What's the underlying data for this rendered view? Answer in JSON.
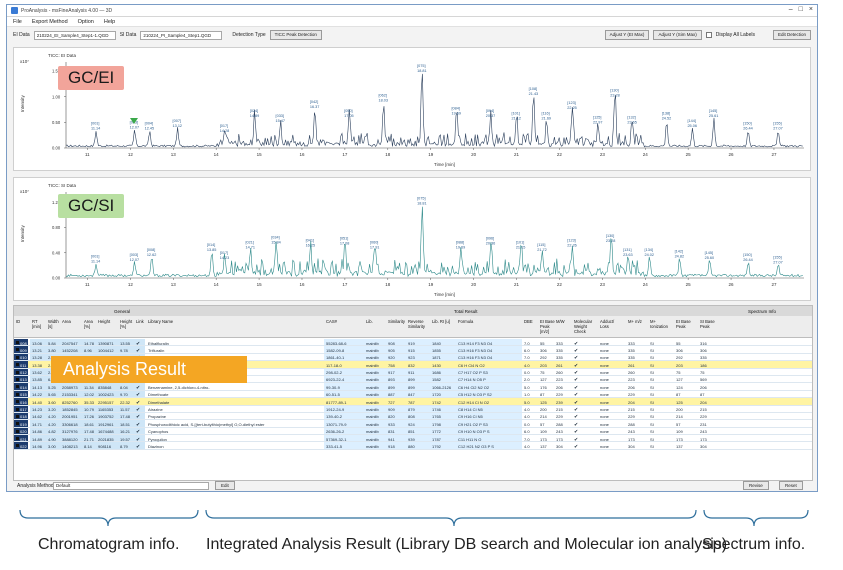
{
  "window": {
    "title": "ProAnalysis - msFineAnalysis 4.00 — 3D",
    "menu": [
      "File",
      "Export Method",
      "Option",
      "Help"
    ]
  },
  "toolbar": {
    "ei_label": "EI Data",
    "ei_value": "210224_EI_Sample4_Step1-1.QGD",
    "si_label": "SI Data",
    "si_value": "210224_PI_Sample4_Step1.QGD",
    "detection_label": "Detection Type",
    "detection_value": "TICC Peak Detection",
    "adjust_ei": "Adjust Y (EI Max)",
    "adjust_sim": "Adjust Y (Sim Max)",
    "display_all_labels": "Display All Labels",
    "edit_detection": "Edit Detection"
  },
  "chart_data": [
    {
      "type": "line",
      "title": "TICC: EI Data",
      "banner": "GC/EI",
      "xlabel": "Time [min]",
      "ylabel": "Intensity",
      "y_exponent": "x10⁷",
      "xlim": [
        10.5,
        27.7
      ],
      "ylim": [
        0,
        1.6
      ],
      "y_ticks": [
        "0.00",
        "0.50",
        "1.00",
        "1.50"
      ],
      "x_ticks": [
        11,
        12,
        13,
        14,
        15,
        16,
        17,
        18,
        19,
        20,
        21,
        22,
        23,
        24,
        25,
        26,
        27
      ],
      "peaks": [
        {
          "t": 11.2,
          "h": 0.3,
          "id": "[001]",
          "rt": "11.14"
        },
        {
          "t": 12.1,
          "h": 0.32,
          "id": "[003]",
          "rt": "12.07"
        },
        {
          "t": 12.45,
          "h": 0.3,
          "id": "[004]",
          "rt": "12.45"
        },
        {
          "t": 13.1,
          "h": 0.35,
          "id": "[007]",
          "rt": "13.12"
        },
        {
          "t": 14.2,
          "h": 0.25,
          "id": "[017]",
          "rt": "14.28"
        },
        {
          "t": 14.9,
          "h": 0.55,
          "id": "[024]",
          "rt": "14.89"
        },
        {
          "t": 15.5,
          "h": 0.45,
          "id": "[033]",
          "rt": "15.47"
        },
        {
          "t": 16.3,
          "h": 0.72,
          "id": "[042]",
          "rt": "16.37"
        },
        {
          "t": 17.1,
          "h": 0.55,
          "id": "[050]",
          "rt": "17.05"
        },
        {
          "t": 17.9,
          "h": 0.85,
          "id": "[062]",
          "rt": "18.03"
        },
        {
          "t": 18.8,
          "h": 1.42,
          "id": "[075]",
          "rt": "18.81"
        },
        {
          "t": 19.6,
          "h": 0.6,
          "id": "[084]",
          "rt": "19.69"
        },
        {
          "t": 20.4,
          "h": 0.55,
          "id": "[094]",
          "rt": "20.37"
        },
        {
          "t": 21.0,
          "h": 0.5,
          "id": "[101]",
          "rt": "21.12"
        },
        {
          "t": 21.4,
          "h": 0.98,
          "id": "[108]",
          "rt": "21.43"
        },
        {
          "t": 21.7,
          "h": 0.5,
          "id": "[116]",
          "rt": "21.69"
        },
        {
          "t": 22.3,
          "h": 0.7,
          "id": "[123]",
          "rt": "22.25"
        },
        {
          "t": 22.9,
          "h": 0.42,
          "id": "[125]",
          "rt": "22.97"
        },
        {
          "t": 23.3,
          "h": 0.95,
          "id": "[130]",
          "rt": "23.28"
        },
        {
          "t": 23.7,
          "h": 0.42,
          "id": "[132]",
          "rt": "23.65"
        },
        {
          "t": 24.5,
          "h": 0.5,
          "id": "[138]",
          "rt": "24.52"
        },
        {
          "t": 25.1,
          "h": 0.35,
          "id": "[144]",
          "rt": "25.06"
        },
        {
          "t": 25.6,
          "h": 0.55,
          "id": "[145]",
          "rt": "25.61"
        },
        {
          "t": 26.4,
          "h": 0.3,
          "id": "[150]",
          "rt": "26.44"
        },
        {
          "t": 27.1,
          "h": 0.3,
          "id": "[155]",
          "rt": "27.07"
        }
      ]
    },
    {
      "type": "line",
      "title": "TICC: SI Data",
      "banner": "GC/SI",
      "xlabel": "Time [min]",
      "ylabel": "Intensity",
      "y_exponent": "x10⁷",
      "xlim": [
        10.5,
        27.7
      ],
      "ylim": [
        0,
        1.3
      ],
      "y_ticks": [
        "0.00",
        "0.40",
        "0.80",
        "1.20"
      ],
      "x_ticks": [
        11,
        12,
        13,
        14,
        15,
        16,
        17,
        18,
        19,
        20,
        21,
        22,
        23,
        24,
        25,
        26,
        27
      ],
      "peaks": [
        {
          "t": 11.2,
          "h": 0.2,
          "id": "[001]",
          "rt": "11.14"
        },
        {
          "t": 12.1,
          "h": 0.22,
          "id": "[003]",
          "rt": "12.07"
        },
        {
          "t": 12.5,
          "h": 0.3,
          "id": "[008]",
          "rt": "12.62"
        },
        {
          "t": 13.9,
          "h": 0.38,
          "id": "[014]",
          "rt": "13.85"
        },
        {
          "t": 14.2,
          "h": 0.25,
          "id": "[017]",
          "rt": "14.23"
        },
        {
          "t": 14.8,
          "h": 0.42,
          "id": "[021]",
          "rt": "14.71"
        },
        {
          "t": 15.4,
          "h": 0.5,
          "id": "[034]",
          "rt": "15.84"
        },
        {
          "t": 16.2,
          "h": 0.45,
          "id": "[041]",
          "rt": "16.25"
        },
        {
          "t": 17.0,
          "h": 0.48,
          "id": "[051]",
          "rt": "17.08"
        },
        {
          "t": 17.7,
          "h": 0.42,
          "id": "[060]",
          "rt": "17.91"
        },
        {
          "t": 18.8,
          "h": 1.12,
          "id": "[075]",
          "rt": "18.81"
        },
        {
          "t": 19.7,
          "h": 0.42,
          "id": "[088]",
          "rt": "19.69"
        },
        {
          "t": 20.4,
          "h": 0.48,
          "id": "[096]",
          "rt": "20.36"
        },
        {
          "t": 21.1,
          "h": 0.42,
          "id": "[101]",
          "rt": "21.15"
        },
        {
          "t": 21.6,
          "h": 0.38,
          "id": "[115]",
          "rt": "21.72"
        },
        {
          "t": 22.3,
          "h": 0.45,
          "id": "[123]",
          "rt": "22.26"
        },
        {
          "t": 23.2,
          "h": 0.52,
          "id": "[130]",
          "rt": "23.28"
        },
        {
          "t": 23.6,
          "h": 0.3,
          "id": "[131]",
          "rt": "23.63"
        },
        {
          "t": 24.1,
          "h": 0.3,
          "id": "[134]",
          "rt": "24.02"
        },
        {
          "t": 24.8,
          "h": 0.28,
          "id": "[142]",
          "rt": "24.82"
        },
        {
          "t": 25.5,
          "h": 0.25,
          "id": "[145]",
          "rt": "25.60"
        },
        {
          "t": 26.4,
          "h": 0.22,
          "id": "[150]",
          "rt": "26.44"
        },
        {
          "t": 27.1,
          "h": 0.18,
          "id": "[155]",
          "rt": "27.07"
        }
      ]
    }
  ],
  "table": {
    "group_general": "General",
    "group_total": "Total Result",
    "group_spectrum": "Spectrum Info",
    "headers": [
      "ID",
      "RT\n[min]",
      "Width\n[s]",
      "Area",
      "Area\n[%]",
      "Height",
      "Height\n[%]",
      "Link",
      "Library Name",
      "CAS#",
      "Lib.",
      "Similarity",
      "Reverse\nSimilarity",
      "Lib. RI [u]",
      "Formula",
      "DBE",
      "EI Base\nPeak\n[m/z]",
      "M/W",
      "Molecular\nWeight\nCheck",
      "Adduct/\nLoss",
      "M+ m/z",
      "M+\nIonization",
      "EI Base\nPeak",
      "SI Base\nPeak"
    ],
    "rows": [
      [
        "008",
        "13.06",
        "5.84",
        "2047547",
        "14.78",
        "1390871",
        "13.55",
        "✔",
        "Ethalfluralin",
        "55283-68-6",
        "mainlib",
        "908",
        "919",
        "1840",
        "C13 H14 F3 N3 O4",
        "7.0",
        "55",
        "333",
        "✔",
        "none",
        "333",
        "SI",
        "55",
        "316"
      ],
      [
        "009",
        "13.21",
        "3.80",
        "1452208",
        "8.96",
        "1004412",
        "9.78",
        "✔",
        "Trifluralin",
        "1582-09-8",
        "mainlib",
        "905",
        "915",
        "1855",
        "C13 H16 F3 N3 O4",
        "6.0",
        "306",
        "335",
        "✔",
        "none",
        "335",
        "SI",
        "306",
        "306"
      ],
      [
        "010",
        "13.28",
        "2.61",
        "1198430",
        "7.36",
        "902132",
        "6.52",
        "✔",
        "Benfluralin",
        "1861-40-1",
        "mainlib",
        "920",
        "923",
        "1871",
        "C13 H16 F3 N3 O4",
        "7.0",
        "292",
        "335",
        "✔",
        "none",
        "335",
        "SI",
        "292",
        "335"
      ],
      [
        "011",
        "13.38",
        "2.53",
        "22781",
        "0.18",
        "19421",
        "0.16",
        "✔",
        "Tecnazene",
        "117-18-0",
        "mainlib",
        "758",
        "832",
        "1430",
        "C6 H Cl4 N O2",
        "4.0",
        "203",
        "261",
        "✔",
        "none",
        "261",
        "SI",
        "203",
        "186"
      ],
      [
        "012",
        "13.62",
        "2.43",
        "1226905",
        "7.46",
        "812135",
        "6.61",
        "✔",
        "Phorate",
        "298-02-2",
        "mainlib",
        "917",
        "911",
        "1686",
        "C7 H17 O2 P S3",
        "0.0",
        "75",
        "260",
        "✔",
        "none",
        "260",
        "SI",
        "75",
        "75"
      ],
      [
        "013",
        "13.85",
        "6.39",
        "1056405",
        "6.11",
        "258851",
        "2.45",
        "✔",
        "Monocrotophos",
        "6923-22-4",
        "mainlib",
        "893",
        "899",
        "1582",
        "C7 H14 N O5 P",
        "2.0",
        "127",
        "223",
        "✔",
        "none",
        "223",
        "SI",
        "127",
        "569"
      ],
      [
        "014",
        "14.13",
        "5.25",
        "2058973",
        "11.34",
        "835848",
        "8.04",
        "✔",
        "Benzenamine, 2,5-dichloro-4-nitro-",
        "99-30-9",
        "mainlib",
        "899",
        "899",
        "1066-2126",
        "C6 H4 Cl2 N2 O2",
        "5.0",
        "176",
        "206",
        "✔",
        "none",
        "206",
        "SI",
        "124",
        "206"
      ],
      [
        "015",
        "14.22",
        "5.65",
        "2153341",
        "12.02",
        "1002423",
        "9.70",
        "✔",
        "Dimethoate",
        "60-51-5",
        "mainlib",
        "887",
        "847",
        "1720",
        "C5 H12 N O3 P S2",
        "1.0",
        "87",
        "229",
        "✔",
        "none",
        "229",
        "SI",
        "87",
        "87"
      ],
      [
        "016",
        "14.40",
        "3.60",
        "8252760",
        "35.33",
        "2295157",
        "22.32",
        "✔",
        "Dimethalate",
        "81777-89-1",
        "mainlib",
        "727",
        "787",
        "1742",
        "C12 H14 Cl N O2",
        "5.0",
        "125",
        "239",
        "✔",
        "none",
        "204",
        "SI",
        "125",
        "204"
      ],
      [
        "017",
        "14.23",
        "3.20",
        "1852845",
        "10.79",
        "1165353",
        "11.57",
        "✔",
        "Atrazine",
        "1912-24-9",
        "mainlib",
        "909",
        "879",
        "1746",
        "C8 H14 Cl N5",
        "4.0",
        "200",
        "215",
        "✔",
        "none",
        "215",
        "SI",
        "200",
        "215"
      ],
      [
        "018",
        "14.62",
        "4.20",
        "2001951",
        "17.26",
        "1903752",
        "17.48",
        "✔",
        "Propazine",
        "139-40-2",
        "mainlib",
        "820",
        "808",
        "1765",
        "C9 H16 Cl N5",
        "4.0",
        "214",
        "229",
        "✔",
        "none",
        "229",
        "SI",
        "214",
        "229"
      ],
      [
        "019",
        "14.71",
        "4.20",
        "3306618",
        "18.61",
        "1912961",
        "18.51",
        "✔",
        "Phosphorodithioic acid, S-[(tert-butylthio)methyl] O,O-diethyl ester",
        "13071-79-9",
        "mainlib",
        "933",
        "924",
        "1798",
        "C9 H21 O2 P S3",
        "0.0",
        "57",
        "288",
        "✔",
        "none",
        "288",
        "SI",
        "57",
        "231"
      ],
      [
        "020",
        "14.86",
        "4.82",
        "3127976",
        "17.48",
        "1674488",
        "16.21",
        "✔",
        "Cyanophos",
        "2636-26-2",
        "mainlib",
        "831",
        "851",
        "1772",
        "C9 H10 N O3 P S",
        "6.0",
        "109",
        "243",
        "✔",
        "none",
        "243",
        "SI",
        "109",
        "243"
      ],
      [
        "021",
        "14.89",
        "4.90",
        "3888120",
        "21.71",
        "2021835",
        "19.57",
        "✔",
        "Pyroquilon",
        "57369-32-1",
        "mainlib",
        "941",
        "939",
        "1787",
        "C11 H11 N O",
        "7.0",
        "173",
        "173",
        "✔",
        "none",
        "173",
        "SI",
        "173",
        "173"
      ],
      [
        "022",
        "14.96",
        "3.00",
        "1408213",
        "8.14",
        "908116",
        "8.79",
        "✔",
        "Diazinon",
        "333-41-5",
        "mainlib",
        "918",
        "880",
        "1792",
        "C12 H21 N2 O3 P S",
        "4.0",
        "137",
        "304",
        "✔",
        "none",
        "304",
        "SI",
        "137",
        "304"
      ]
    ],
    "banner": "Analysis Result"
  },
  "bottom": {
    "method_label": "Analysis Method",
    "method_value": "Default",
    "edit": "Edit",
    "revise": "Revise",
    "reset": "Reset"
  },
  "captions": {
    "left": "Chromatogram info.",
    "middle": "Integrated Analysis Result (Library DB search and Molecular ion analysis)",
    "right": "Spectrum info."
  },
  "colors": {
    "ei_line": "#2b3f5c",
    "si_line": "#2e8a8a",
    "banner_ei": "#f2a49a",
    "banner_si": "#b8dfa1",
    "banner_result": "#f4a623",
    "highlight_row": "#fff4a3",
    "id_cell": "#1d3c6e"
  }
}
